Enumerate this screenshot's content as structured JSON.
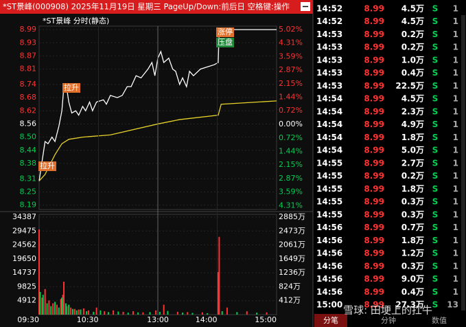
{
  "header": {
    "title": "*ST景峰(000908) 2025年11月19日 星期三 PageUp/Down:前后日 空格键:操作"
  },
  "chart_data": [
    {
      "type": "line",
      "title": "*ST景峰 分时(静态)",
      "series": [
        {
          "color": "#ffffff",
          "x": [
            0,
            2,
            6,
            9,
            13,
            16,
            20,
            23,
            25,
            28,
            30,
            33,
            37,
            40,
            44,
            47,
            51,
            54,
            58,
            65,
            68,
            72,
            79,
            84,
            89,
            93,
            98,
            103,
            110,
            114,
            117,
            120,
            123,
            126,
            131,
            135,
            138,
            142,
            145,
            149,
            152,
            156,
            163,
            170,
            177,
            181,
            182,
            240
          ],
          "values": [
            8.3,
            8.36,
            8.48,
            8.47,
            8.5,
            8.48,
            8.55,
            8.62,
            8.73,
            8.72,
            8.66,
            8.61,
            8.62,
            8.6,
            8.64,
            8.62,
            8.66,
            8.62,
            8.66,
            8.67,
            8.65,
            8.69,
            8.68,
            8.69,
            8.73,
            8.73,
            8.78,
            8.77,
            8.81,
            8.84,
            8.78,
            8.86,
            8.89,
            8.84,
            8.86,
            8.81,
            8.8,
            8.74,
            8.77,
            8.73,
            8.8,
            8.78,
            8.81,
            8.82,
            8.83,
            8.84,
            8.99,
            8.99
          ]
        },
        {
          "color": "#e6d22a",
          "x": [
            0,
            6,
            16,
            23,
            30,
            44,
            72,
            120,
            142,
            181,
            184,
            240
          ],
          "values": [
            8.3,
            8.33,
            8.42,
            8.47,
            8.49,
            8.5,
            8.51,
            8.56,
            8.58,
            8.6,
            8.65,
            8.665
          ]
        }
      ],
      "xlim": [
        0,
        240
      ],
      "xticks": [
        {
          "value": 0,
          "label": "09:30"
        },
        {
          "value": 60,
          "label": "10:30"
        },
        {
          "value": 120,
          "label": "13:00"
        },
        {
          "value": 180,
          "label": "14:00"
        },
        {
          "value": 240,
          "label": "15:00"
        }
      ],
      "ylim": [
        8.17,
        9.006
      ],
      "yticks": [
        8.99,
        8.93,
        8.87,
        8.81,
        8.74,
        8.68,
        8.62,
        8.56,
        {
          "value": 8.5,
          "label": "8.50"
        },
        8.44,
        8.38,
        8.31,
        8.25,
        8.19
      ],
      "y2lim": [
        -4.51,
        5.2
      ],
      "y2ticks": [
        {
          "value": 5.02,
          "label": "5.02%"
        },
        {
          "value": 4.31,
          "label": "4.31%"
        },
        {
          "value": 3.59,
          "label": "3.59%"
        },
        {
          "value": 2.87,
          "label": "2.87%"
        },
        {
          "value": 2.15,
          "label": "2.15%"
        },
        {
          "value": 1.44,
          "label": "1.44%"
        },
        {
          "value": 0.72,
          "label": "0.72%"
        },
        {
          "value": 0,
          "label": "0.00%"
        },
        {
          "value": -0.72,
          "label": "0.72%"
        },
        {
          "value": -1.44,
          "label": "1.44%"
        },
        {
          "value": -2.15,
          "label": "2.15%"
        },
        {
          "value": -2.87,
          "label": "2.87%"
        },
        {
          "value": -3.59,
          "label": "3.59%"
        },
        {
          "value": -4.31,
          "label": "4.31%"
        }
      ],
      "annotations": [
        "拉升",
        "拉升",
        "涨停",
        "压盘"
      ]
    },
    {
      "type": "bar",
      "series": [
        {
          "color": "#ff3232",
          "x": [
            0,
            3,
            6,
            10,
            14,
            18,
            22,
            24,
            25,
            28,
            32,
            36,
            40,
            45,
            50,
            58,
            66,
            75,
            85,
            95,
            105,
            118,
            126,
            140,
            150,
            165,
            181,
            182,
            190,
            210,
            230
          ],
          "values": [
            30000,
            6000,
            9000,
            5000,
            4000,
            3500,
            5500,
            7000,
            11600,
            3000,
            2500,
            2000,
            1800,
            2200,
            1500,
            2500,
            1200,
            1500,
            1000,
            1200,
            800,
            1500,
            3500,
            1000,
            900,
            800,
            15000,
            27400,
            2500,
            1200,
            800
          ]
        },
        {
          "color": "#00d050",
          "x": [
            1,
            4,
            8,
            12,
            16,
            20,
            23,
            27,
            30,
            34,
            38,
            42,
            48,
            55,
            62,
            70,
            80,
            90,
            100,
            112,
            122,
            130,
            145,
            155,
            170,
            185,
            200,
            220
          ],
          "values": [
            8000,
            7000,
            4000,
            3000,
            4500,
            2500,
            6000,
            4000,
            3500,
            2000,
            1500,
            1800,
            1200,
            1000,
            1500,
            900,
            1100,
            700,
            800,
            900,
            1000,
            1300,
            700,
            600,
            500,
            1200,
            900,
            700
          ]
        }
      ],
      "xlim": [
        0,
        240
      ],
      "ylim": [
        0,
        35350
      ],
      "yticks": [
        34387,
        29475,
        24562,
        19650,
        14737,
        9825,
        4912
      ],
      "y2lim": [
        0,
        2966
      ],
      "y2ticks": [
        {
          "value": 2885,
          "label": "2885万"
        },
        {
          "value": 2473,
          "label": "2473万"
        },
        {
          "value": 2061,
          "label": "2061万"
        },
        {
          "value": 1649,
          "label": "1649万"
        },
        {
          "value": 1236,
          "label": "1236万"
        },
        {
          "value": 824,
          "label": "824万"
        },
        {
          "value": 412,
          "label": "412万"
        }
      ]
    }
  ],
  "trades": {
    "rows": [
      [
        "14:52",
        "8.99",
        "4.5万",
        "S",
        "1"
      ],
      [
        "14:52",
        "8.99",
        "4.5万",
        "S",
        "1"
      ],
      [
        "14:53",
        "8.99",
        "0.2万",
        "S",
        "1"
      ],
      [
        "14:53",
        "8.99",
        "0.2万",
        "S",
        "1"
      ],
      [
        "14:53",
        "8.99",
        "1.0万",
        "S",
        "1"
      ],
      [
        "14:53",
        "8.99",
        "0.4万",
        "S",
        "1"
      ],
      [
        "14:53",
        "8.99",
        "22.5万",
        "S",
        "1"
      ],
      [
        "14:54",
        "8.99",
        "4.5万",
        "S",
        "1"
      ],
      [
        "14:54",
        "8.99",
        "2.3万",
        "S",
        "1"
      ],
      [
        "14:54",
        "8.99",
        "4.9万",
        "S",
        "1"
      ],
      [
        "14:54",
        "8.99",
        "1.8万",
        "S",
        "1"
      ],
      [
        "14:54",
        "8.99",
        "5.0万",
        "S",
        "1"
      ],
      [
        "14:55",
        "8.99",
        "2.7万",
        "S",
        "1"
      ],
      [
        "14:55",
        "8.99",
        "0.2万",
        "S",
        "1"
      ],
      [
        "14:55",
        "8.99",
        "1.8万",
        "S",
        "1"
      ],
      [
        "14:55",
        "8.99",
        "0.3万",
        "S",
        "1"
      ],
      [
        "14:55",
        "8.99",
        "0.3万",
        "S",
        "1"
      ],
      [
        "14:56",
        "8.99",
        "0.7万",
        "S",
        "1"
      ],
      [
        "14:56",
        "8.99",
        "1.8万",
        "S",
        "1"
      ],
      [
        "14:56",
        "8.99",
        "1.2万",
        "S",
        "1"
      ],
      [
        "14:56",
        "8.99",
        "0.3万",
        "S",
        "1"
      ],
      [
        "14:56",
        "8.99",
        "9.0万",
        "S",
        "1"
      ],
      [
        "14:56",
        "8.99",
        "0.4万",
        "S",
        "1"
      ],
      [
        "15:00",
        "8.99",
        "27.3万",
        "S",
        "13"
      ]
    ]
  },
  "tabs": [
    "分笔",
    "分钟",
    "数值"
  ],
  "watermark": "雪球: 田埂上的扛牛"
}
